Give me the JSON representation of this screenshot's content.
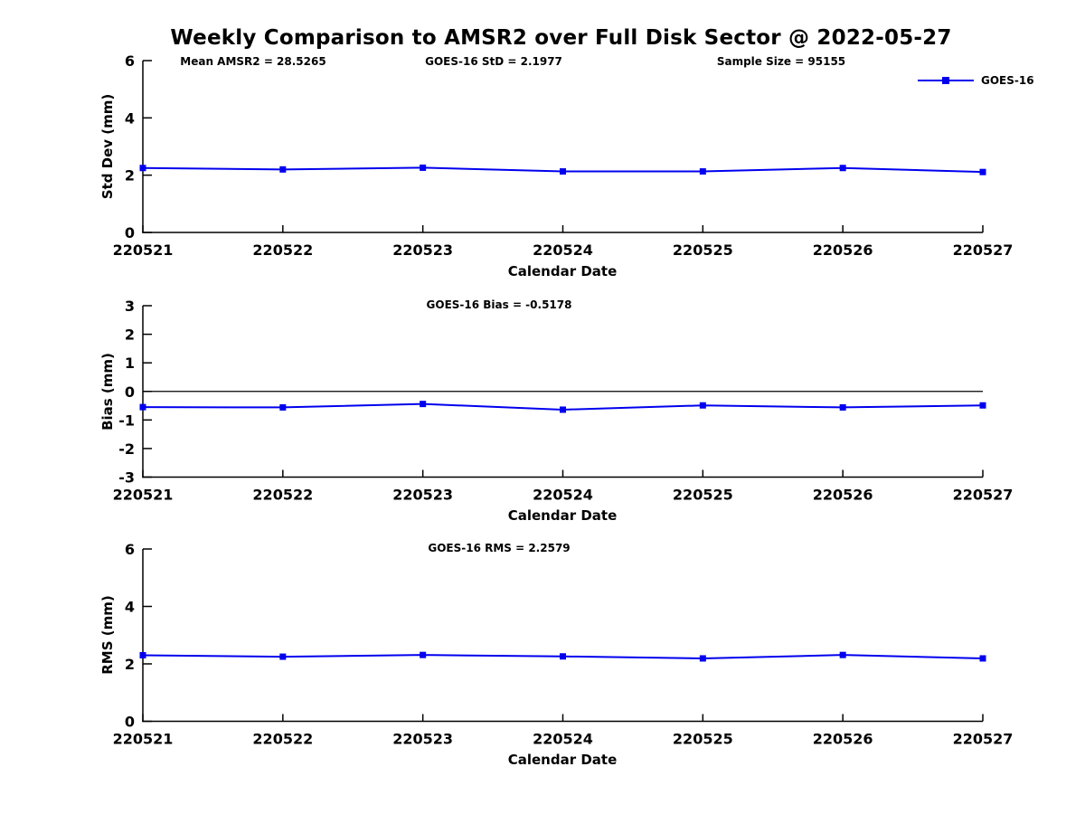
{
  "figure": {
    "title": "Weekly Comparison to AMSR2 over Full Disk Sector @ 2022-05-27"
  },
  "legend": {
    "label": "GOES-16",
    "marker": "square-icon"
  },
  "colors": {
    "line": "#0000ee",
    "axis": "#000000",
    "background": "#ffffff"
  },
  "chart_data": [
    {
      "type": "line",
      "title": "",
      "annotations": [
        "Mean AMSR2 = 28.5265",
        "GOES-16 StD = 2.1977",
        "Sample Size = 95155"
      ],
      "stats": {
        "mean_amsr2": 28.5265,
        "goes16_std": 2.1977,
        "sample_size": 95155
      },
      "xlabel": "Calendar Date",
      "ylabel": "Std Dev (mm)",
      "categories": [
        "220521",
        "220522",
        "220523",
        "220524",
        "220525",
        "220526",
        "220527"
      ],
      "series": [
        {
          "name": "GOES-16",
          "values": [
            2.25,
            2.2,
            2.26,
            2.13,
            2.13,
            2.25,
            2.11
          ]
        }
      ],
      "ylim": [
        0,
        6
      ],
      "yticks": [
        0,
        2,
        4,
        6
      ],
      "zero_line": false,
      "grid": false,
      "legend_position": "top-right-outside"
    },
    {
      "type": "line",
      "title": "GOES-16 Bias  = -0.5178",
      "stats": {
        "goes16_bias": -0.5178
      },
      "xlabel": "Calendar Date",
      "ylabel": "Bias (mm)",
      "categories": [
        "220521",
        "220522",
        "220523",
        "220524",
        "220525",
        "220526",
        "220527"
      ],
      "series": [
        {
          "name": "GOES-16",
          "values": [
            -0.55,
            -0.56,
            -0.44,
            -0.64,
            -0.49,
            -0.56,
            -0.49
          ]
        }
      ],
      "ylim": [
        -3,
        3
      ],
      "yticks": [
        -3,
        -2,
        -1,
        0,
        1,
        2,
        3
      ],
      "zero_line": true,
      "grid": false
    },
    {
      "type": "line",
      "title": "GOES-16 RMS = 2.2579",
      "stats": {
        "goes16_rms": 2.2579
      },
      "xlabel": "Calendar Date",
      "ylabel": "RMS (mm)",
      "categories": [
        "220521",
        "220522",
        "220523",
        "220524",
        "220525",
        "220526",
        "220527"
      ],
      "series": [
        {
          "name": "GOES-16",
          "values": [
            2.3,
            2.25,
            2.31,
            2.26,
            2.19,
            2.31,
            2.19
          ]
        }
      ],
      "ylim": [
        0,
        6
      ],
      "yticks": [
        0,
        2,
        4,
        6
      ],
      "zero_line": false,
      "grid": false
    }
  ]
}
